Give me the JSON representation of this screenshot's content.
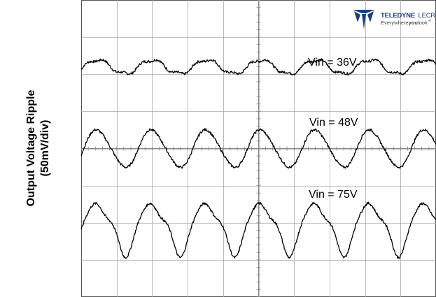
{
  "chart_data": {
    "type": "line",
    "title": "",
    "xlabel": "",
    "ylabel": "Output Voltage Ripple (50mV/div)",
    "ylabel_lines": [
      "Output Voltage Ripple",
      "(50mV/div)"
    ],
    "grid": true,
    "grid_divisions": {
      "x": 10,
      "y": 8
    },
    "ylim_div": [
      -4,
      4
    ],
    "series": [
      {
        "name": "Vin = 36V",
        "label": "Vin = 36V",
        "cycles": 6.5,
        "ripple_pp_div": 0.45,
        "offset_div": 2.2
      },
      {
        "name": "Vin = 48V",
        "label": "Vin = 48V",
        "cycles": 6.5,
        "ripple_pp_div": 1.0,
        "offset_div": 0.0
      },
      {
        "name": "Vin = 75V",
        "label": "Vin = 75V",
        "cycles": 6.5,
        "ripple_pp_div": 1.3,
        "offset_div": -2.1
      }
    ]
  },
  "logo": {
    "brand_part1": "TELEDYNE",
    "brand_part2": "LECROY",
    "tagline_part1": "Everywhere",
    "tagline_part2": "you",
    "tagline_part3": "look",
    "tagline_mark": "™"
  },
  "colors": {
    "trace": "#000000",
    "grid": "#aaaaaa",
    "border": "#555555",
    "logo_blue": "#1f3d7a"
  }
}
